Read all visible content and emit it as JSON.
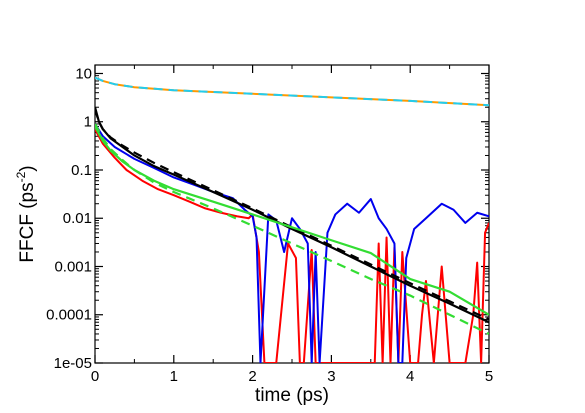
{
  "chart_data": {
    "type": "line",
    "xlabel": "time (ps)",
    "ylabel_main": "FFCF (ps",
    "ylabel_sup": "-2",
    "ylabel_close": ")",
    "xlim": [
      0,
      5
    ],
    "ylim": [
      1e-05,
      15
    ],
    "yscale": "log",
    "grid": false,
    "xticks": [
      {
        "value": 0,
        "label": "0"
      },
      {
        "value": 1,
        "label": "1"
      },
      {
        "value": 2,
        "label": "2"
      },
      {
        "value": 3,
        "label": "3"
      },
      {
        "value": 4,
        "label": "4"
      },
      {
        "value": 5,
        "label": "5"
      }
    ],
    "yticks": [
      {
        "value": 10,
        "label": "10"
      },
      {
        "value": 1,
        "label": "1"
      },
      {
        "value": 0.1,
        "label": "0.1"
      },
      {
        "value": 0.01,
        "label": "0.01"
      },
      {
        "value": 0.001,
        "label": "0.001"
      },
      {
        "value": 0.0001,
        "label": "0.0001"
      },
      {
        "value": 1e-05,
        "label": "1e-05"
      }
    ],
    "series": [
      {
        "color": "#ff9900",
        "dash": false,
        "width": 2,
        "x": [
          0,
          0.1,
          0.25,
          0.5,
          1,
          2,
          3,
          4,
          5
        ],
        "y": [
          8.2,
          7.0,
          6.0,
          5.2,
          4.5,
          3.8,
          3.2,
          2.7,
          2.2
        ]
      },
      {
        "color": "#22ccee",
        "dash": true,
        "width": 2,
        "x": [
          0,
          0.1,
          0.25,
          0.5,
          1,
          2,
          3,
          4,
          5
        ],
        "y": [
          8.2,
          7.0,
          6.0,
          5.2,
          4.5,
          3.8,
          3.2,
          2.7,
          2.2
        ]
      },
      {
        "color": "#ff0000",
        "dash": false,
        "width": 2,
        "x": [
          0,
          0.1,
          0.25,
          0.4,
          0.6,
          0.8,
          1.0,
          1.2,
          1.4,
          1.6,
          1.8,
          1.95,
          2.0,
          2.08,
          2.15,
          2.3,
          2.45,
          2.55,
          2.6,
          2.65,
          2.75,
          2.8,
          2.85,
          3.0,
          3.2,
          3.4,
          3.55,
          3.6,
          3.65,
          3.7,
          3.75,
          3.8,
          3.85,
          3.9,
          4.0,
          4.1,
          4.15,
          4.2,
          4.3,
          4.4,
          4.5,
          4.6,
          4.7,
          4.8,
          4.85,
          4.9,
          4.95,
          5.0
        ],
        "y": [
          0.7,
          0.35,
          0.18,
          0.1,
          0.06,
          0.04,
          0.03,
          0.022,
          0.016,
          0.013,
          0.011,
          0.01,
          0.012,
          0.002,
          1e-05,
          1e-05,
          0.003,
          0.0015,
          1e-05,
          1e-05,
          0.0022,
          1e-05,
          1e-05,
          1e-05,
          1e-05,
          1e-05,
          1e-05,
          0.003,
          1e-05,
          0.004,
          1e-05,
          0.0025,
          1e-05,
          0.002,
          1e-05,
          1e-05,
          0.0001,
          0.0005,
          1e-05,
          0.001,
          1e-05,
          1e-05,
          1e-05,
          0.0001,
          0.0012,
          1e-05,
          0.005,
          0.008
        ]
      },
      {
        "color": "#0000ee",
        "dash": false,
        "width": 2,
        "x": [
          0,
          0.1,
          0.25,
          0.5,
          0.75,
          1.0,
          1.25,
          1.5,
          1.75,
          1.9,
          2.0,
          2.05,
          2.1,
          2.2,
          2.3,
          2.4,
          2.5,
          2.6,
          2.7,
          2.75,
          2.8,
          2.85,
          2.95,
          3.05,
          3.2,
          3.35,
          3.5,
          3.6,
          3.7,
          3.8,
          3.85,
          3.9,
          3.95,
          4.05,
          4.2,
          4.4,
          4.55,
          4.7,
          4.85,
          5.0
        ],
        "y": [
          0.9,
          0.5,
          0.3,
          0.17,
          0.11,
          0.07,
          0.05,
          0.035,
          0.026,
          0.015,
          0.011,
          0.004,
          1e-05,
          0.012,
          0.009,
          0.002,
          0.01,
          0.006,
          0.003,
          1e-05,
          0.002,
          1e-05,
          0.005,
          0.012,
          0.02,
          0.013,
          0.025,
          0.01,
          0.006,
          0.003,
          1e-05,
          1e-05,
          0.0015,
          0.006,
          0.01,
          0.02,
          0.015,
          0.008,
          0.013,
          0.011
        ]
      },
      {
        "color": "#000000",
        "dash": false,
        "width": 2.2,
        "x": [
          0,
          0.05,
          0.1,
          0.2,
          0.35,
          0.5,
          0.75,
          1.0,
          1.5,
          2.0,
          2.5,
          3.0,
          3.5,
          4.0,
          4.5,
          5.0
        ],
        "y": [
          2.0,
          1.0,
          0.7,
          0.45,
          0.3,
          0.2,
          0.12,
          0.08,
          0.035,
          0.015,
          0.006,
          0.0025,
          0.001,
          0.0004,
          0.00017,
          7e-05
        ]
      },
      {
        "color": "#000000",
        "dash": true,
        "width": 2.2,
        "x": [
          0,
          0.05,
          0.1,
          0.2,
          0.35,
          0.5,
          0.75,
          1.0,
          1.5,
          2.0,
          2.5,
          3.0,
          3.5,
          4.0,
          4.5,
          5.0
        ],
        "y": [
          1.8,
          1.0,
          0.7,
          0.47,
          0.32,
          0.23,
          0.14,
          0.09,
          0.038,
          0.016,
          0.0065,
          0.0027,
          0.0011,
          0.00045,
          0.00019,
          8e-05
        ]
      },
      {
        "color": "#33dd33",
        "dash": false,
        "width": 2.2,
        "x": [
          0,
          0.1,
          0.2,
          0.35,
          0.5,
          0.75,
          1.0,
          1.5,
          2.0,
          2.5,
          3.0,
          3.5,
          4.0,
          4.5,
          5.0
        ],
        "y": [
          0.8,
          0.4,
          0.25,
          0.15,
          0.1,
          0.06,
          0.04,
          0.022,
          0.012,
          0.0065,
          0.0035,
          0.0019,
          0.00055,
          0.0003,
          0.0001
        ]
      },
      {
        "color": "#33dd33",
        "dash": true,
        "width": 2.2,
        "x": [
          0,
          0.1,
          0.2,
          0.35,
          0.5,
          0.75,
          1.0,
          1.5,
          2.0,
          2.5,
          3.0,
          3.5,
          4.0,
          4.5,
          5.0
        ],
        "y": [
          0.9,
          0.45,
          0.27,
          0.16,
          0.1,
          0.055,
          0.035,
          0.016,
          0.007,
          0.003,
          0.0013,
          0.00055,
          0.00025,
          0.0001,
          4e-05
        ]
      }
    ]
  }
}
